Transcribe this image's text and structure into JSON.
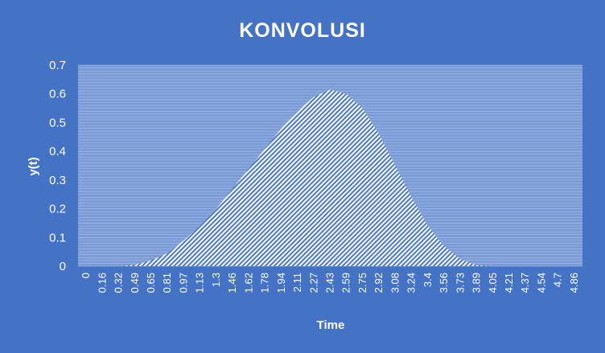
{
  "chart_data": {
    "type": "area",
    "title": "KONVOLUSI",
    "xlabel": "Time",
    "ylabel": "y(t)",
    "ylim": [
      0,
      0.7
    ],
    "yticks": [
      "0",
      "0.1",
      "0.2",
      "0.3",
      "0.4",
      "0.5",
      "0.6",
      "0.7"
    ],
    "xticks": [
      "0",
      "0.16",
      "0.32",
      "0.49",
      "0.65",
      "0.81",
      "0.97",
      "1.13",
      "1.3",
      "1.46",
      "1.62",
      "1.78",
      "1.94",
      "2.11",
      "2.27",
      "2.43",
      "2.59",
      "2.75",
      "2.92",
      "3.08",
      "3.24",
      "3.4",
      "3.56",
      "3.73",
      "3.89",
      "4.05",
      "4.21",
      "4.37",
      "4.54",
      "4.7",
      "4.86"
    ],
    "grid": true,
    "fill_pattern": "diagonal-hatch",
    "series": [
      {
        "x": [
          0,
          0.16,
          0.32,
          0.49,
          0.65,
          0.81,
          0.97,
          1.13,
          1.3,
          1.46,
          1.62,
          1.78,
          1.94,
          2.11,
          2.27,
          2.43,
          2.59,
          2.75,
          2.92,
          3.08,
          3.24,
          3.4,
          3.56,
          3.73,
          3.89,
          4.05,
          4.21,
          4.37,
          4.54,
          4.7,
          4.86
        ],
        "values": [
          0,
          0,
          0,
          0.005,
          0.02,
          0.045,
          0.09,
          0.14,
          0.2,
          0.27,
          0.34,
          0.41,
          0.48,
          0.54,
          0.59,
          0.615,
          0.6,
          0.55,
          0.46,
          0.35,
          0.24,
          0.14,
          0.07,
          0.025,
          0.003,
          0,
          0,
          0,
          0,
          0,
          0
        ]
      }
    ],
    "colors": {
      "background": "#4472c4",
      "plot_area": "#7b9bd6",
      "grid": "#a9bfe6",
      "text": "#ffffff",
      "fill": "#ffffff"
    }
  }
}
